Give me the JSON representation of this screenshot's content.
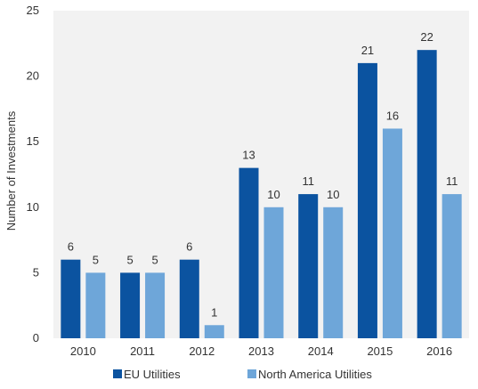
{
  "chart_data": {
    "type": "bar",
    "title": "",
    "xlabel": "",
    "ylabel": "Number of Investments",
    "ylim": [
      0,
      25
    ],
    "yticks": [
      0,
      5,
      10,
      15,
      20,
      25
    ],
    "grid": false,
    "legend_position": "bottom",
    "categories": [
      "2010",
      "2011",
      "2012",
      "2013",
      "2014",
      "2015",
      "2016"
    ],
    "series": [
      {
        "name": "EU Utilities",
        "color": "#0b53a0",
        "values": [
          6,
          5,
          6,
          13,
          11,
          21,
          22
        ]
      },
      {
        "name": "North America Utilities",
        "color": "#6ea6d9",
        "values": [
          5,
          5,
          1,
          10,
          10,
          16,
          11
        ]
      }
    ]
  }
}
